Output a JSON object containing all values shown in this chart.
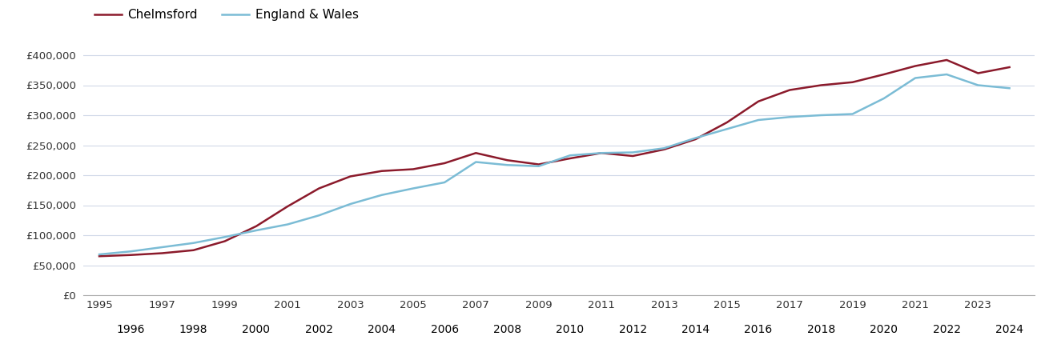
{
  "chelmsford": {
    "years": [
      1995,
      1996,
      1997,
      1998,
      1999,
      2000,
      2001,
      2002,
      2003,
      2004,
      2005,
      2006,
      2007,
      2008,
      2009,
      2010,
      2011,
      2012,
      2013,
      2014,
      2015,
      2016,
      2017,
      2018,
      2019,
      2020,
      2021,
      2022,
      2023,
      2024
    ],
    "values": [
      65000,
      67000,
      70000,
      75000,
      90000,
      115000,
      148000,
      178000,
      198000,
      207000,
      210000,
      220000,
      237000,
      225000,
      218000,
      228000,
      237000,
      232000,
      243000,
      260000,
      288000,
      323000,
      342000,
      350000,
      355000,
      368000,
      382000,
      392000,
      370000,
      380000
    ]
  },
  "england_wales": {
    "years": [
      1995,
      1996,
      1997,
      1998,
      1999,
      2000,
      2001,
      2002,
      2003,
      2004,
      2005,
      2006,
      2007,
      2008,
      2009,
      2010,
      2011,
      2012,
      2013,
      2014,
      2015,
      2016,
      2017,
      2018,
      2019,
      2020,
      2021,
      2022,
      2023,
      2024
    ],
    "values": [
      68000,
      73000,
      80000,
      87000,
      97000,
      108000,
      118000,
      133000,
      152000,
      167000,
      178000,
      188000,
      222000,
      217000,
      215000,
      233000,
      237000,
      238000,
      245000,
      262000,
      277000,
      292000,
      297000,
      300000,
      302000,
      328000,
      362000,
      368000,
      350000,
      345000
    ]
  },
  "chelmsford_color": "#8B1A2B",
  "england_wales_color": "#7BBCD5",
  "line_width": 1.8,
  "ylim": [
    0,
    420000
  ],
  "yticks": [
    0,
    50000,
    100000,
    150000,
    200000,
    250000,
    300000,
    350000,
    400000
  ],
  "xlim": [
    1994.5,
    2024.8
  ],
  "odd_xticks": [
    1995,
    1997,
    1999,
    2001,
    2003,
    2005,
    2007,
    2009,
    2011,
    2013,
    2015,
    2017,
    2019,
    2021,
    2023
  ],
  "even_xticks": [
    1996,
    1998,
    2000,
    2002,
    2004,
    2006,
    2008,
    2010,
    2012,
    2014,
    2016,
    2018,
    2020,
    2022,
    2024
  ],
  "background_color": "#ffffff",
  "grid_color": "#d0d8e8",
  "legend_chelmsford": "Chelmsford",
  "legend_ew": "England & Wales"
}
